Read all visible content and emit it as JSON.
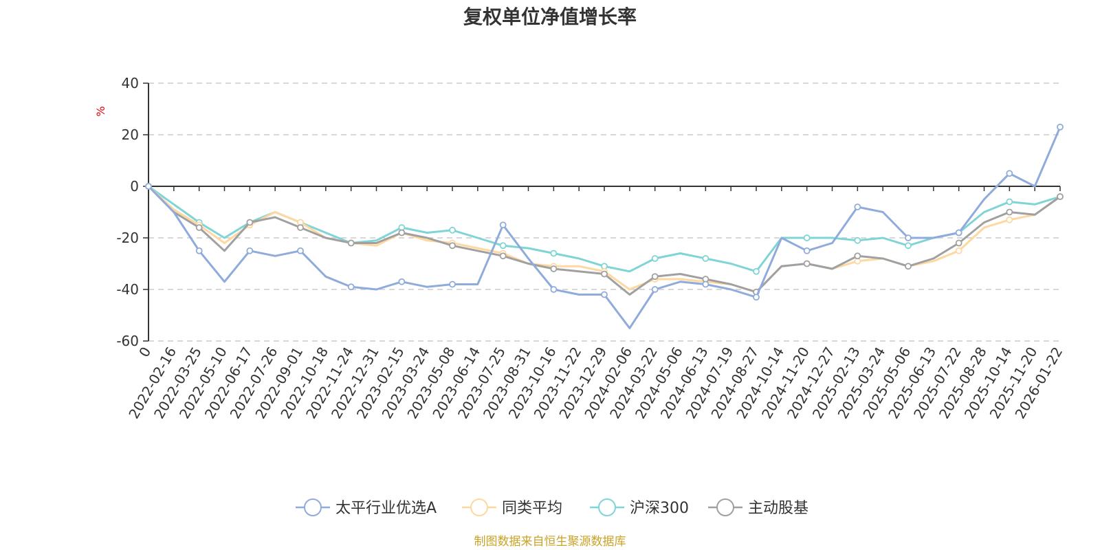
{
  "chart_data": {
    "type": "line",
    "title": "复权单位净值增长率",
    "ylabel": "%",
    "ylim": [
      -60,
      40
    ],
    "y_ticks": [
      "40",
      "20",
      "0",
      "-20",
      "-40",
      "-60"
    ],
    "y_tick_values": [
      40,
      20,
      0,
      -20,
      -40,
      -60
    ],
    "grid": true,
    "legend_position": "bottom",
    "x_tick_labels": [
      "0",
      "2022-02-16",
      "2022-03-25",
      "2022-05-10",
      "2022-06-17",
      "2022-07-26",
      "2022-09-01",
      "2022-10-18",
      "2022-11-24",
      "2022-12-31",
      "2023-02-15",
      "2023-03-24",
      "2023-05-08",
      "2023-06-14",
      "2023-07-25",
      "2023-08-31",
      "2023-10-16",
      "2023-11-22",
      "2023-12-29",
      "2024-02-06",
      "2024-03-22",
      "2024-05-06",
      "2024-06-13",
      "2024-07-19",
      "2024-08-27",
      "2024-10-14",
      "2024-11-20",
      "2024-12-27",
      "2025-02-13",
      "2025-03-24",
      "2025-05-06",
      "2025-06-13",
      "2025-07-22",
      "2025-08-28",
      "2025-10-14",
      "2025-11-20",
      "2026-01-22"
    ],
    "series": [
      {
        "name": "太平行业优选A",
        "color": "#8fabdc",
        "values": [
          0,
          -10,
          -25,
          -37,
          -25,
          -27,
          -25,
          -35,
          -39,
          -40,
          -37,
          -39,
          -38,
          -38,
          -15,
          -28,
          -40,
          -42,
          -42,
          -55,
          -40,
          -37,
          -38,
          -40,
          -43,
          -20,
          -25,
          -22,
          -8,
          -10,
          -20,
          -20,
          -18,
          -5,
          5,
          0,
          23
        ]
      },
      {
        "name": "同类平均",
        "color": "#ffd7a0",
        "values": [
          0,
          -9,
          -15,
          -22,
          -15,
          -10,
          -14,
          -20,
          -22,
          -23,
          -18,
          -21,
          -22,
          -24,
          -26,
          -30,
          -31,
          -31,
          -33,
          -40,
          -36,
          -36,
          -37,
          -38,
          -41,
          -31,
          -30,
          -32,
          -29,
          -28,
          -31,
          -29,
          -25,
          -16,
          -13,
          -11,
          -4
        ]
      },
      {
        "name": "沪深300",
        "color": "#7fd4d5",
        "values": [
          0,
          -7,
          -14,
          -20,
          -14,
          -10,
          -14,
          -18,
          -22,
          -21,
          -16,
          -18,
          -17,
          -20,
          -23,
          -24,
          -26,
          -28,
          -31,
          -33,
          -28,
          -26,
          -28,
          -30,
          -33,
          -20,
          -20,
          -20,
          -21,
          -20,
          -23,
          -20,
          -18,
          -10,
          -6,
          -7,
          -4
        ]
      },
      {
        "name": "主动股基",
        "color": "#a0a0a0",
        "values": [
          0,
          -10,
          -16,
          -25,
          -14,
          -12,
          -16,
          -20,
          -22,
          -22,
          -18,
          -20,
          -23,
          -25,
          -27,
          -30,
          -32,
          -33,
          -34,
          -42,
          -35,
          -34,
          -36,
          -38,
          -41,
          -31,
          -30,
          -32,
          -27,
          -28,
          -31,
          -28,
          -22,
          -14,
          -10,
          -11,
          -4
        ]
      }
    ]
  },
  "footer": "制图数据来自恒生聚源数据库"
}
